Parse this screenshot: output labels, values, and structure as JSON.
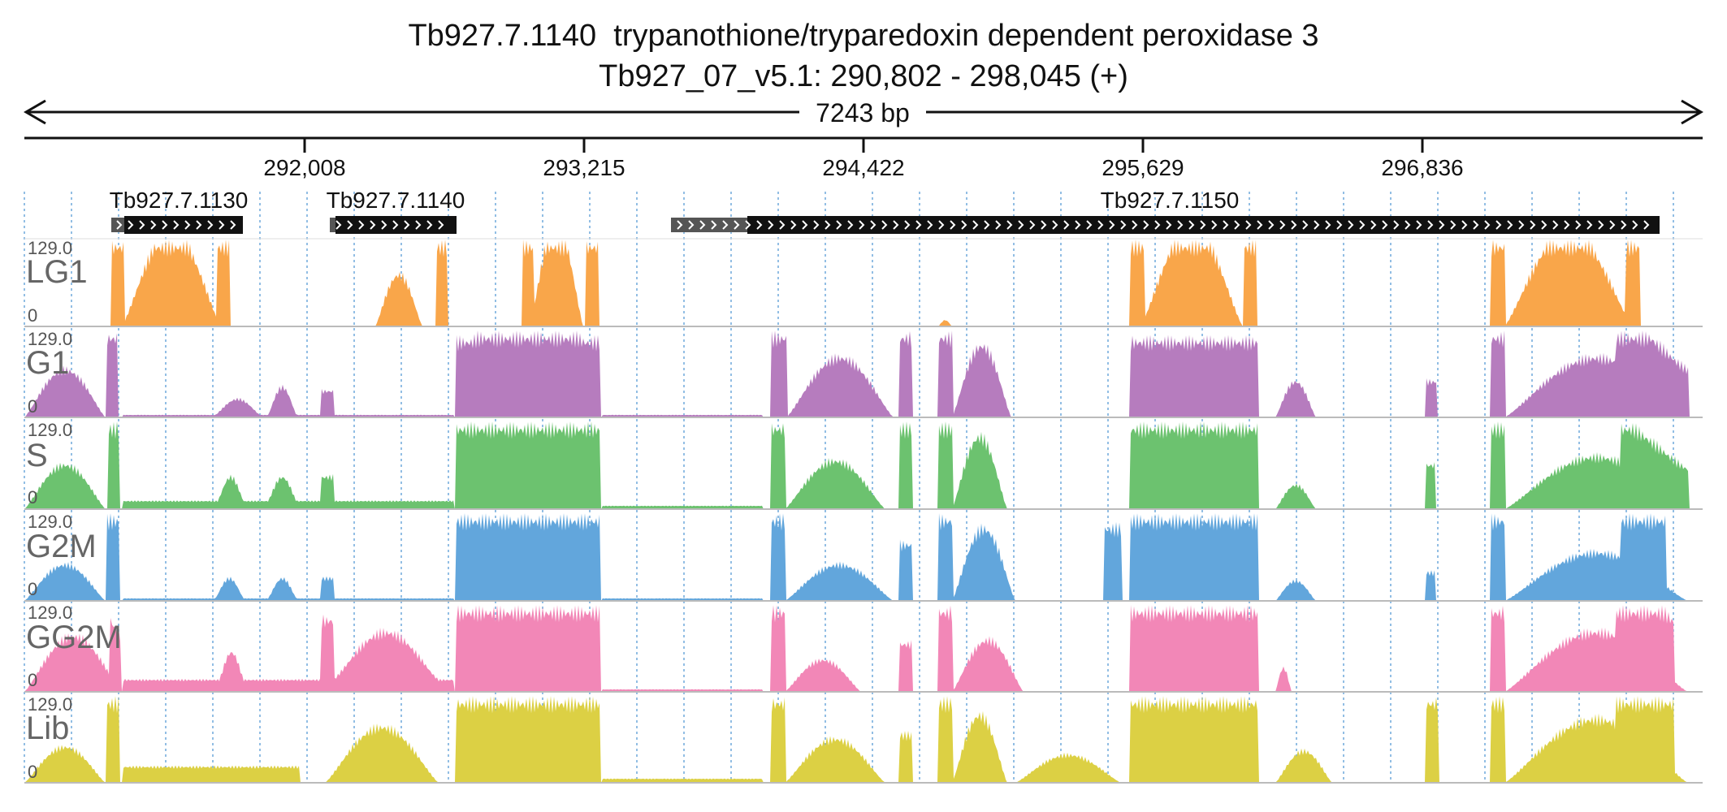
{
  "header": {
    "gene_title": "Tb927.7.1140  trypanothione/tryparedoxin dependent peroxidase 3",
    "locus": "Tb927_07_v5.1: 290,802 - 298,045 (+)",
    "span_label": "7243 bp"
  },
  "ruler": {
    "ticks": [
      "292,008",
      "293,215",
      "294,422",
      "295,629",
      "296,836"
    ]
  },
  "genes": [
    {
      "name": "Tb927.7.1130",
      "strand": "+"
    },
    {
      "name": "Tb927.7.1140",
      "strand": "+"
    },
    {
      "name": "Tb927.7.1150",
      "strand": "+"
    }
  ],
  "tracks": [
    {
      "name": "LG1",
      "max": "129.0",
      "min": "0",
      "color": "#f9a64a"
    },
    {
      "name": "G1",
      "max": "129.0",
      "min": "0",
      "color": "#b67cbe"
    },
    {
      "name": "S",
      "max": "129.0",
      "min": "0",
      "color": "#6cc26f"
    },
    {
      "name": "G2M",
      "max": "129.0",
      "min": "0",
      "color": "#62a6dc"
    },
    {
      "name": "GG2M",
      "max": "129.0",
      "min": "0",
      "color": "#f287b7"
    },
    {
      "name": "Lib",
      "max": "129.0",
      "min": "0",
      "color": "#dcd044"
    }
  ],
  "colors": {
    "gene_bar": "#111111",
    "utr_bar": "#555555",
    "grid_line": "#6fa8dc",
    "clip_mark": "#cc3333"
  }
}
